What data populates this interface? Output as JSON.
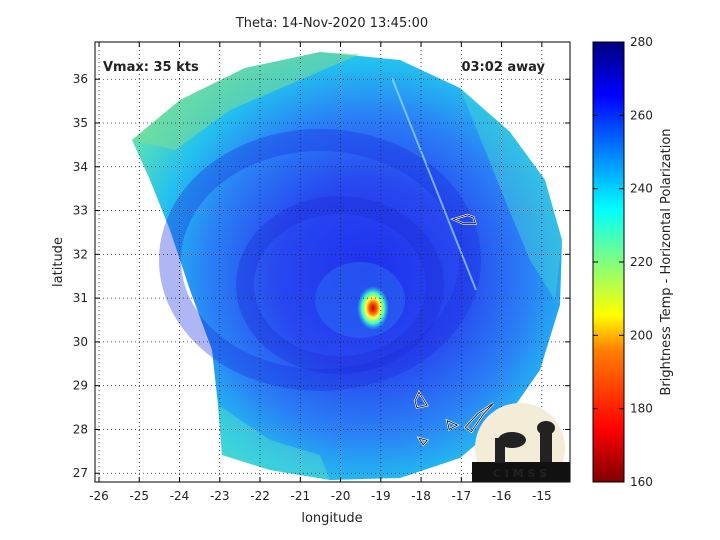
{
  "chart_data": {
    "type": "heatmap",
    "title": "Theta: 14-Nov-2020 13:45:00",
    "xlabel": "longitude",
    "ylabel": "latitude",
    "xlim": [
      -26.1,
      -14.3
    ],
    "ylim": [
      26.8,
      36.85
    ],
    "xticks": [
      -26,
      -25,
      -24,
      -23,
      -22,
      -21,
      -20,
      -19,
      -18,
      -17,
      -16,
      -15
    ],
    "yticks": [
      27,
      28,
      29,
      30,
      31,
      32,
      33,
      34,
      35,
      36
    ],
    "grid": true,
    "annotations": {
      "vmax": "Vmax: 35 kts",
      "timing": "03:02 away"
    },
    "colorbar": {
      "label": "Brightness Temp - Horizontal Polarization",
      "range": [
        160,
        280
      ],
      "ticks": [
        160,
        180,
        200,
        220,
        240,
        260,
        280
      ]
    },
    "features": {
      "storm_center": {
        "lon": -19.2,
        "lat": 30.8,
        "min_temp": 185
      },
      "land_outlines": [
        {
          "name": "island-1",
          "points": [
            [
              -16.85,
              32.9
            ],
            [
              -16.7,
              32.85
            ],
            [
              -16.65,
              32.7
            ],
            [
              -16.95,
              32.7
            ],
            [
              -17.2,
              32.8
            ]
          ]
        },
        {
          "name": "island-2",
          "points": [
            [
              -18.05,
              28.85
            ],
            [
              -17.85,
              28.55
            ],
            [
              -18.1,
              28.5
            ],
            [
              -18.15,
              28.65
            ]
          ]
        },
        {
          "name": "island-3",
          "points": [
            [
              -17.35,
              28.2
            ],
            [
              -17.1,
              28.1
            ],
            [
              -17.3,
              28.0
            ]
          ]
        },
        {
          "name": "island-4",
          "points": [
            [
              -16.9,
              28.05
            ],
            [
              -16.6,
              28.35
            ],
            [
              -16.2,
              28.6
            ],
            [
              -16.45,
              28.35
            ],
            [
              -16.75,
              27.95
            ]
          ]
        },
        {
          "name": "island-5",
          "points": [
            [
              -18.05,
              27.8
            ],
            [
              -17.85,
              27.75
            ],
            [
              -17.95,
              27.65
            ]
          ]
        }
      ]
    }
  },
  "logo": {
    "text": "C I M S S"
  }
}
